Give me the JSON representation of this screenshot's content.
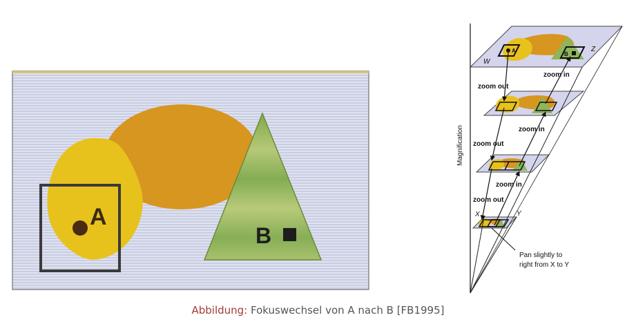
{
  "left_figure": {
    "label_a": "A",
    "label_b": "B"
  },
  "right_figure": {
    "y_axis_label": "Magnification",
    "top_plane_labels": {
      "w": "W",
      "a": "A",
      "b": "B",
      "z": "Z"
    },
    "zoom_in_label": "zoom in",
    "zoom_out_label": "zoom out",
    "bottom_plane_labels": {
      "x": "X",
      "y": "Y"
    },
    "pan_annotation_line1": "Pan slightly to",
    "pan_annotation_line2": "right from X to Y"
  },
  "caption": {
    "label": "Abbildung:",
    "text": "Fokuswechsel von A nach B [FB1995]"
  },
  "colors": {
    "background_stripe": "#d8dbeb",
    "yellow": "#e7c21d",
    "orange": "#d79620",
    "green": "#8fb55a",
    "plane": "#d4d4ec",
    "caption_label": "#a53a3a"
  }
}
